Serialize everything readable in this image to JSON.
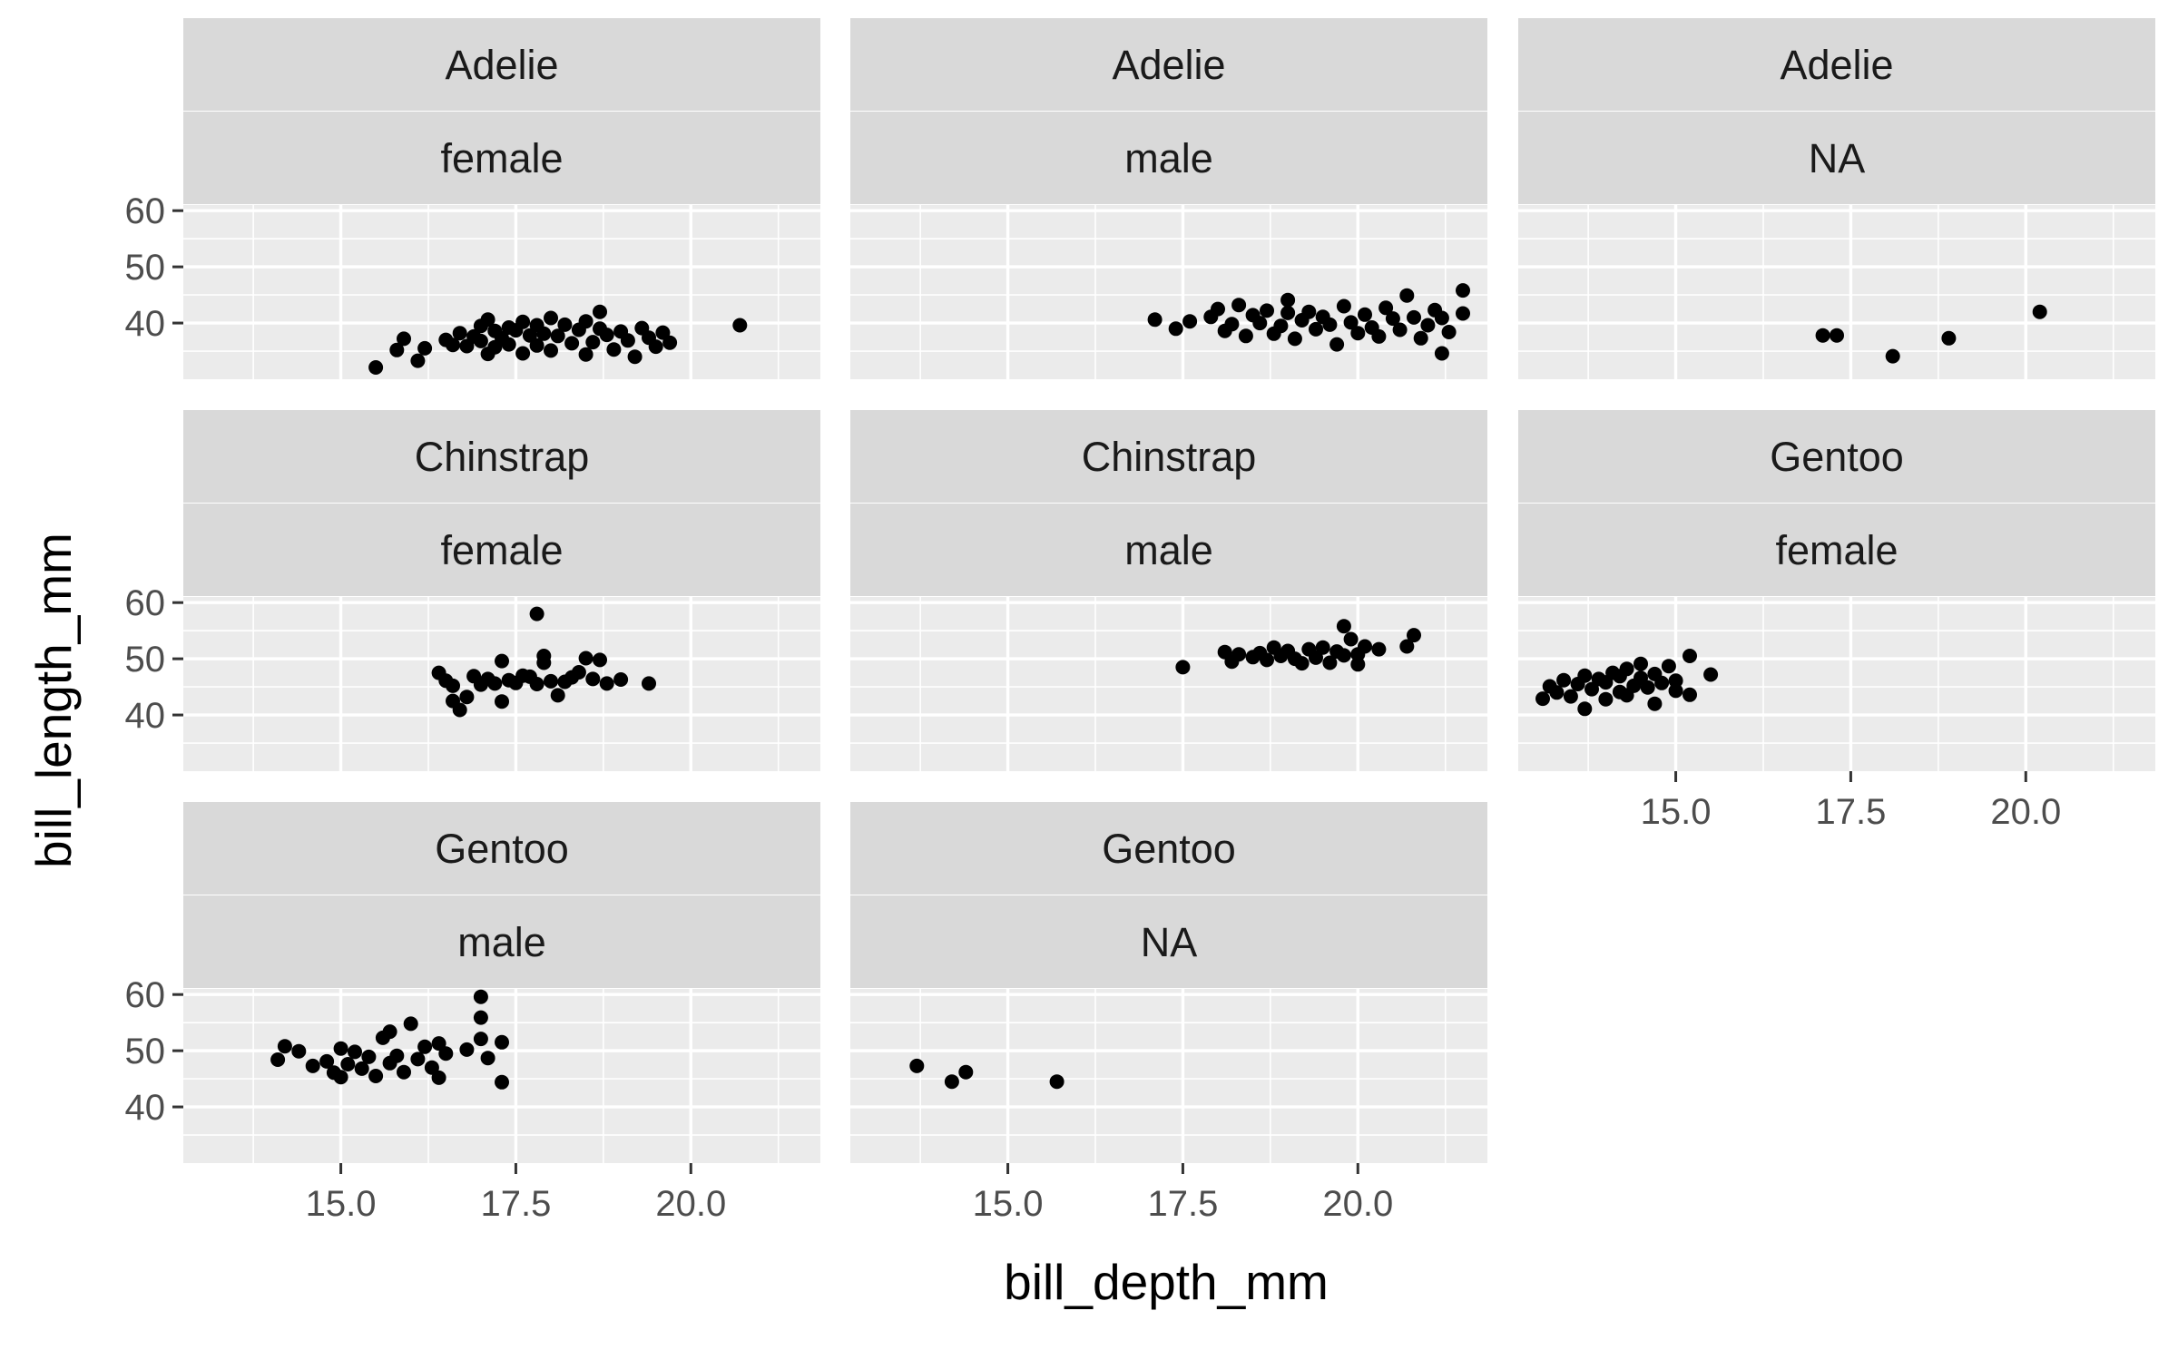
{
  "chart_data": {
    "type": "scatter",
    "xlabel": "bill_depth_mm",
    "ylabel": "bill_length_mm",
    "xlim": [
      12.75,
      21.85
    ],
    "ylim": [
      30.0,
      61.0
    ],
    "x_ticks": [
      15.0,
      17.5,
      20.0
    ],
    "x_tick_labels": [
      "15.0",
      "17.5",
      "20.0"
    ],
    "y_ticks": [
      40,
      50,
      60
    ],
    "y_tick_labels": [
      "40",
      "50",
      "60"
    ],
    "grid": true,
    "legend": "none",
    "colors": {
      "panel_bg": "#ebebeb",
      "strip_bg": "#d9d9d9",
      "grid": "#ffffff",
      "point": "#000000",
      "tick_text": "#4d4d4d"
    },
    "facets": [
      {
        "species": "Adelie",
        "sex": "female",
        "points": [
          [
            15.5,
            32.1
          ],
          [
            15.8,
            35.2
          ],
          [
            15.9,
            37.2
          ],
          [
            16.1,
            33.3
          ],
          [
            16.2,
            35.5
          ],
          [
            16.5,
            37.0
          ],
          [
            16.6,
            36.1
          ],
          [
            16.7,
            38.2
          ],
          [
            16.8,
            35.9
          ],
          [
            16.9,
            37.6
          ],
          [
            17.0,
            39.5
          ],
          [
            17.0,
            36.8
          ],
          [
            17.1,
            34.5
          ],
          [
            17.1,
            40.6
          ],
          [
            17.2,
            38.6
          ],
          [
            17.2,
            35.7
          ],
          [
            17.3,
            37.3
          ],
          [
            17.4,
            39.2
          ],
          [
            17.4,
            36.2
          ],
          [
            17.5,
            38.7
          ],
          [
            17.6,
            40.2
          ],
          [
            17.6,
            34.6
          ],
          [
            17.7,
            37.8
          ],
          [
            17.8,
            39.6
          ],
          [
            17.8,
            36.0
          ],
          [
            17.9,
            38.1
          ],
          [
            18.0,
            40.9
          ],
          [
            18.0,
            35.1
          ],
          [
            18.1,
            37.7
          ],
          [
            18.2,
            39.7
          ],
          [
            18.3,
            36.4
          ],
          [
            18.4,
            38.8
          ],
          [
            18.5,
            34.4
          ],
          [
            18.5,
            40.3
          ],
          [
            18.6,
            36.6
          ],
          [
            18.7,
            39.0
          ],
          [
            18.7,
            42.0
          ],
          [
            18.8,
            37.9
          ],
          [
            18.9,
            35.3
          ],
          [
            19.0,
            38.5
          ],
          [
            19.1,
            36.9
          ],
          [
            19.2,
            34.0
          ],
          [
            19.3,
            39.1
          ],
          [
            19.4,
            37.4
          ],
          [
            19.5,
            35.8
          ],
          [
            19.6,
            38.3
          ],
          [
            19.7,
            36.5
          ],
          [
            20.7,
            39.6
          ]
        ]
      },
      {
        "species": "Adelie",
        "sex": "male",
        "points": [
          [
            17.1,
            40.6
          ],
          [
            17.4,
            39.0
          ],
          [
            17.6,
            40.3
          ],
          [
            17.9,
            41.1
          ],
          [
            18.0,
            42.5
          ],
          [
            18.1,
            38.6
          ],
          [
            18.2,
            39.8
          ],
          [
            18.3,
            43.2
          ],
          [
            18.4,
            37.7
          ],
          [
            18.5,
            41.4
          ],
          [
            18.6,
            40.0
          ],
          [
            18.7,
            42.2
          ],
          [
            18.8,
            38.1
          ],
          [
            18.9,
            39.5
          ],
          [
            19.0,
            41.8
          ],
          [
            19.0,
            44.1
          ],
          [
            19.1,
            37.2
          ],
          [
            19.2,
            40.5
          ],
          [
            19.3,
            42.0
          ],
          [
            19.4,
            38.9
          ],
          [
            19.5,
            41.1
          ],
          [
            19.6,
            39.7
          ],
          [
            19.7,
            36.2
          ],
          [
            19.8,
            43.0
          ],
          [
            19.9,
            40.1
          ],
          [
            20.0,
            38.2
          ],
          [
            20.1,
            41.5
          ],
          [
            20.2,
            39.2
          ],
          [
            20.3,
            37.6
          ],
          [
            20.4,
            42.7
          ],
          [
            20.5,
            40.8
          ],
          [
            20.6,
            38.8
          ],
          [
            20.7,
            44.9
          ],
          [
            20.8,
            41.0
          ],
          [
            20.9,
            37.3
          ],
          [
            21.0,
            39.6
          ],
          [
            21.1,
            42.3
          ],
          [
            21.2,
            40.9
          ],
          [
            21.2,
            34.6
          ],
          [
            21.3,
            38.4
          ],
          [
            21.5,
            41.7
          ],
          [
            21.5,
            45.8
          ]
        ]
      },
      {
        "species": "Adelie",
        "sex": "NA",
        "points": [
          [
            17.1,
            37.8
          ],
          [
            17.3,
            37.8
          ],
          [
            18.1,
            34.1
          ],
          [
            18.9,
            37.3
          ],
          [
            20.2,
            42.0
          ]
        ]
      },
      {
        "species": "Chinstrap",
        "sex": "female",
        "points": [
          [
            16.4,
            47.5
          ],
          [
            16.5,
            46.1
          ],
          [
            16.6,
            42.5
          ],
          [
            16.6,
            45.2
          ],
          [
            16.7,
            40.9
          ],
          [
            16.8,
            43.2
          ],
          [
            16.9,
            46.9
          ],
          [
            17.0,
            45.4
          ],
          [
            17.1,
            46.4
          ],
          [
            17.2,
            45.6
          ],
          [
            17.3,
            42.4
          ],
          [
            17.3,
            49.6
          ],
          [
            17.4,
            46.2
          ],
          [
            17.5,
            45.7
          ],
          [
            17.6,
            47.0
          ],
          [
            17.7,
            46.8
          ],
          [
            17.8,
            58.0
          ],
          [
            17.8,
            45.5
          ],
          [
            17.9,
            49.3
          ],
          [
            17.9,
            50.5
          ],
          [
            18.0,
            46.0
          ],
          [
            18.1,
            43.5
          ],
          [
            18.2,
            45.9
          ],
          [
            18.3,
            46.7
          ],
          [
            18.4,
            47.6
          ],
          [
            18.5,
            50.1
          ],
          [
            18.6,
            46.4
          ],
          [
            18.7,
            49.8
          ],
          [
            18.8,
            45.6
          ],
          [
            19.0,
            46.3
          ],
          [
            19.4,
            45.6
          ]
        ]
      },
      {
        "species": "Chinstrap",
        "sex": "male",
        "points": [
          [
            17.5,
            48.5
          ],
          [
            18.1,
            51.2
          ],
          [
            18.2,
            49.5
          ],
          [
            18.3,
            50.8
          ],
          [
            18.5,
            50.3
          ],
          [
            18.6,
            51.0
          ],
          [
            18.7,
            49.8
          ],
          [
            18.8,
            52.0
          ],
          [
            18.9,
            50.5
          ],
          [
            19.0,
            51.4
          ],
          [
            19.1,
            50.0
          ],
          [
            19.2,
            49.2
          ],
          [
            19.3,
            51.7
          ],
          [
            19.4,
            50.2
          ],
          [
            19.5,
            52.0
          ],
          [
            19.6,
            49.3
          ],
          [
            19.7,
            51.3
          ],
          [
            19.8,
            55.8
          ],
          [
            19.8,
            50.6
          ],
          [
            19.9,
            53.5
          ],
          [
            20.0,
            50.8
          ],
          [
            20.0,
            49.0
          ],
          [
            20.1,
            52.2
          ],
          [
            20.3,
            51.7
          ],
          [
            20.7,
            52.2
          ],
          [
            20.8,
            54.2
          ]
        ]
      },
      {
        "species": "Gentoo",
        "sex": "female",
        "points": [
          [
            13.1,
            42.9
          ],
          [
            13.2,
            45.1
          ],
          [
            13.3,
            44.0
          ],
          [
            13.4,
            46.2
          ],
          [
            13.5,
            43.3
          ],
          [
            13.6,
            45.5
          ],
          [
            13.7,
            41.1
          ],
          [
            13.7,
            47.0
          ],
          [
            13.8,
            44.6
          ],
          [
            13.9,
            46.4
          ],
          [
            14.0,
            42.8
          ],
          [
            14.0,
            45.8
          ],
          [
            14.1,
            47.5
          ],
          [
            14.2,
            44.1
          ],
          [
            14.2,
            46.9
          ],
          [
            14.3,
            43.5
          ],
          [
            14.3,
            48.2
          ],
          [
            14.4,
            45.2
          ],
          [
            14.5,
            46.6
          ],
          [
            14.5,
            49.1
          ],
          [
            14.6,
            44.9
          ],
          [
            14.7,
            47.3
          ],
          [
            14.7,
            42.0
          ],
          [
            14.8,
            45.7
          ],
          [
            14.9,
            48.7
          ],
          [
            15.0,
            46.1
          ],
          [
            15.0,
            44.3
          ],
          [
            15.2,
            50.5
          ],
          [
            15.2,
            43.6
          ],
          [
            15.5,
            47.2
          ]
        ]
      },
      {
        "species": "Gentoo",
        "sex": "male",
        "points": [
          [
            14.1,
            48.4
          ],
          [
            14.2,
            50.8
          ],
          [
            14.4,
            49.9
          ],
          [
            14.6,
            47.3
          ],
          [
            14.8,
            48.1
          ],
          [
            14.9,
            46.1
          ],
          [
            15.0,
            50.4
          ],
          [
            15.0,
            45.3
          ],
          [
            15.1,
            47.6
          ],
          [
            15.2,
            49.8
          ],
          [
            15.3,
            46.8
          ],
          [
            15.4,
            48.9
          ],
          [
            15.5,
            45.5
          ],
          [
            15.6,
            52.3
          ],
          [
            15.7,
            47.8
          ],
          [
            15.7,
            53.4
          ],
          [
            15.8,
            49.1
          ],
          [
            15.9,
            46.2
          ],
          [
            16.0,
            54.8
          ],
          [
            16.1,
            48.5
          ],
          [
            16.2,
            50.7
          ],
          [
            16.3,
            47.0
          ],
          [
            16.4,
            51.3
          ],
          [
            16.4,
            45.2
          ],
          [
            16.5,
            49.5
          ],
          [
            16.8,
            50.2
          ],
          [
            17.0,
            59.6
          ],
          [
            17.0,
            55.9
          ],
          [
            17.0,
            52.1
          ],
          [
            17.1,
            48.7
          ],
          [
            17.3,
            51.5
          ],
          [
            17.3,
            44.4
          ]
        ]
      },
      {
        "species": "Gentoo",
        "sex": "NA",
        "points": [
          [
            13.7,
            47.3
          ],
          [
            14.2,
            44.5
          ],
          [
            14.4,
            46.2
          ],
          [
            15.7,
            44.5
          ]
        ]
      }
    ]
  }
}
